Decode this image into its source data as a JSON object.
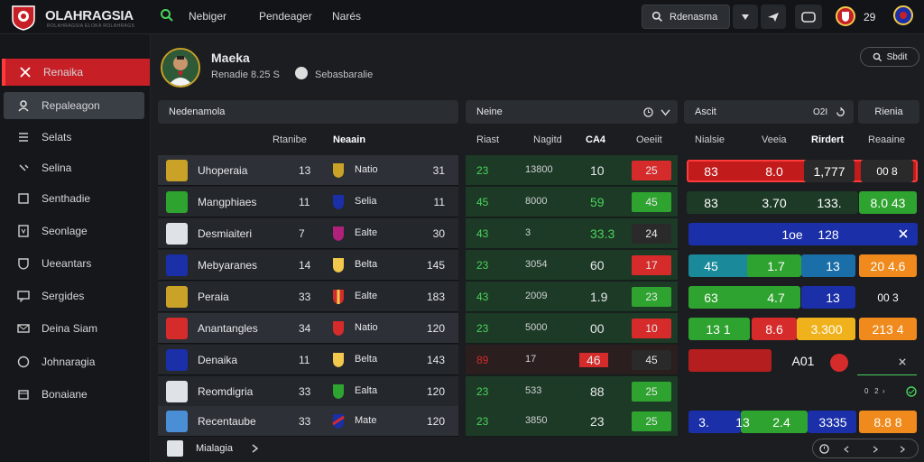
{
  "app": {
    "brand": "OLAHRAGSIA",
    "tagline": "ROLAHRAGSIA ELOKA ROLAHRAGS"
  },
  "topnav": {
    "items": [
      "Nebiger",
      "Pendeager",
      "Narés"
    ],
    "search_label": "Rdenasma",
    "count": "29"
  },
  "sidebar": {
    "items": [
      {
        "label": "Renaika",
        "icon": "x-icon"
      },
      {
        "label": "Repaleagon",
        "icon": "user-icon"
      },
      {
        "label": "Selats",
        "icon": "list-icon"
      },
      {
        "label": "Selina",
        "icon": "link-icon"
      },
      {
        "label": "Senthadie",
        "icon": "file-icon"
      },
      {
        "label": "Seonlage",
        "icon": "doc-icon"
      },
      {
        "label": "Ueeantars",
        "icon": "shield-icon"
      },
      {
        "label": "Sergides",
        "icon": "chat-icon"
      },
      {
        "label": "Deina Siam",
        "icon": "mail-icon"
      },
      {
        "label": "Johnaragia",
        "icon": "info-icon"
      },
      {
        "label": "Bonaiane",
        "icon": "calendar-icon"
      }
    ]
  },
  "profile": {
    "name": "Maeka",
    "sub": "Renadie 8.25 S",
    "sub2": "Sebasbaralie"
  },
  "search_btn": "Sbdit",
  "panels": {
    "left": {
      "title": "Nedenamola",
      "col1": "Rtanibe",
      "col2": "Neaain"
    },
    "mid": {
      "title": "Neine",
      "cols": [
        "Riast",
        "Nagitd",
        "CA4",
        "Oeeiit"
      ]
    },
    "right": {
      "title": "Ascit",
      "badge": "O2I",
      "cols": [
        "Nialsie",
        "Veeia",
        "Rirdert",
        "Reaaine"
      ],
      "button": "Rienia"
    }
  },
  "rows": [
    {
      "name": "Uhoperaia",
      "v1": "13",
      "team": "Natio",
      "v2": "31"
    },
    {
      "name": "Mangphiaes",
      "v1": "11",
      "team": "Selia",
      "v2": "11"
    },
    {
      "name": "Desmiaiteri",
      "v1": "7",
      "team": "Ealte",
      "v2": "30"
    },
    {
      "name": "Mebyaranes",
      "v1": "14",
      "team": "Belta",
      "v2": "145"
    },
    {
      "name": "Peraia",
      "v1": "33",
      "team": "Ealte",
      "v2": "183"
    },
    {
      "name": "Anantangles",
      "v1": "34",
      "team": "Natio",
      "v2": "120"
    },
    {
      "name": "Denaika",
      "v1": "11",
      "team": "Belta",
      "v2": "143"
    },
    {
      "name": "Reomdigria",
      "v1": "33",
      "team": "Ealta",
      "v2": "120"
    },
    {
      "name": "Recentaube",
      "v1": "33",
      "team": "Mate",
      "v2": "120"
    }
  ],
  "mid_rows": [
    {
      "a": "23",
      "b": "13800",
      "c": "10",
      "d": "25",
      "dc": "#d62b2b"
    },
    {
      "a": "45",
      "b": "8000",
      "c": "59",
      "d": "45",
      "dc": "#2fa32f"
    },
    {
      "a": "43",
      "b": "3",
      "c": "33.3",
      "d": "24",
      "dc": "#2a2a2a"
    },
    {
      "a": "23",
      "b": "3054",
      "c": "60",
      "d": "17",
      "dc": "#d62b2b"
    },
    {
      "a": "43",
      "b": "2009",
      "c": "1.9",
      "d": "23",
      "dc": "#2fa32f"
    },
    {
      "a": "23",
      "b": "5000",
      "c": "00",
      "d": "10",
      "dc": "#d62b2b"
    },
    {
      "a": "89",
      "b": "17",
      "c": "46",
      "d": "45",
      "dc": "#2a2a2a"
    },
    {
      "a": "23",
      "b": "533",
      "c": "88",
      "d": "25",
      "dc": "#2fa32f"
    },
    {
      "a": "23",
      "b": "3850",
      "c": "23",
      "d": "25",
      "dc": "#2fa32f"
    }
  ],
  "right_rows": [
    [
      "83",
      "8.0",
      "1,777",
      "00   8"
    ],
    [
      "83",
      "3.70",
      "133.",
      "8.0 43"
    ],
    [
      "1oe",
      "128",
      ""
    ],
    [
      "45",
      "1.7",
      "13",
      "20 4.6"
    ],
    [
      "63",
      "4.7",
      "13",
      "00 3"
    ],
    [
      "13 1",
      "8.6",
      "3.300",
      "213 4"
    ],
    [
      "A01"
    ],
    [
      ""
    ],
    [
      "3.",
      "13",
      "2.4",
      "3335",
      "8.8 8"
    ]
  ],
  "footer": {
    "label": "Mialagia"
  },
  "colors": {
    "accent": "#c62026",
    "green": "#2fa32f",
    "red": "#d62b2b",
    "blue": "#1a2fa8",
    "orange": "#f08a1c"
  }
}
